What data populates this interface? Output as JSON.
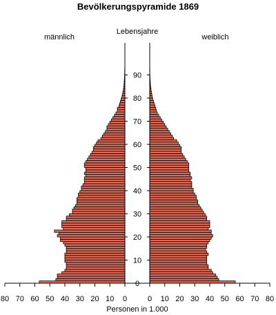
{
  "chart_data": {
    "type": "bar",
    "title": "Bevölkerungspyramide 1869",
    "left_label": "männlich",
    "right_label": "weiblich",
    "center_label": "Lebensjahre",
    "xlabel": "Personen in 1.000",
    "xlim": [
      0,
      80
    ],
    "x_ticks": [
      "0",
      "10",
      "20",
      "30",
      "40",
      "50",
      "60",
      "70",
      "80"
    ],
    "age_ticks": [
      "0",
      "10",
      "20",
      "30",
      "40",
      "50",
      "60",
      "70",
      "80",
      "90"
    ],
    "bar_color": "#e06a58",
    "ages": [
      0,
      1,
      2,
      3,
      4,
      5,
      6,
      7,
      8,
      9,
      10,
      11,
      12,
      13,
      14,
      15,
      16,
      17,
      18,
      19,
      20,
      21,
      22,
      23,
      24,
      25,
      26,
      27,
      28,
      29,
      30,
      31,
      32,
      33,
      34,
      35,
      36,
      37,
      38,
      39,
      40,
      41,
      42,
      43,
      44,
      45,
      46,
      47,
      48,
      49,
      50,
      51,
      52,
      53,
      54,
      55,
      56,
      57,
      58,
      59,
      60,
      61,
      62,
      63,
      64,
      65,
      66,
      67,
      68,
      69,
      70,
      71,
      72,
      73,
      74,
      75,
      76,
      77,
      78,
      79,
      80,
      81,
      82,
      83,
      84,
      85,
      86,
      87,
      88,
      89,
      90,
      91,
      92,
      93,
      94,
      95,
      96,
      97,
      98,
      99
    ],
    "series": [
      {
        "name": "männlich",
        "values": [
          57,
          46,
          45,
          45,
          42,
          40,
          39,
          39,
          39,
          40,
          40,
          40,
          40,
          39,
          39,
          39,
          40,
          41,
          43,
          43,
          45,
          44,
          47,
          41,
          42,
          42,
          42,
          39,
          39,
          37,
          35,
          35,
          34,
          33,
          32,
          32,
          32,
          31,
          31,
          30,
          29,
          29,
          28,
          27,
          27,
          27,
          26,
          27,
          26,
          26,
          27,
          27,
          26,
          25,
          24,
          23,
          22,
          21,
          21,
          20,
          19,
          18,
          16,
          15,
          14,
          13,
          12,
          12,
          11,
          10,
          9,
          8,
          7,
          6,
          5,
          5,
          4,
          3.5,
          3,
          2.5,
          2,
          1.6,
          1.3,
          1,
          0.8,
          0.6,
          0.5,
          0.4,
          0.3,
          0.2,
          0.15,
          0.1,
          0.1,
          0.05,
          0.05,
          0,
          0,
          0,
          0,
          0
        ]
      },
      {
        "name": "weiblich",
        "values": [
          57,
          46,
          45,
          44,
          42,
          41,
          39,
          39,
          38,
          38,
          38,
          38,
          39,
          38,
          37,
          38,
          38,
          39,
          40,
          41,
          42,
          41,
          41,
          39,
          40,
          40,
          40,
          38,
          38,
          37,
          36,
          35,
          34,
          33,
          32,
          32,
          31,
          31,
          30,
          29,
          29,
          28,
          28,
          28,
          27,
          28,
          27,
          27,
          26,
          26,
          26,
          26,
          25,
          24,
          23,
          22,
          21,
          21,
          21,
          20,
          19,
          18,
          16,
          15,
          14,
          13,
          12,
          11,
          10,
          9,
          8,
          7,
          6,
          5,
          4.5,
          4,
          3.5,
          3,
          2.5,
          2,
          1.7,
          1.4,
          1.1,
          0.9,
          0.7,
          0.5,
          0.4,
          0.3,
          0.2,
          0.15,
          0.1,
          0.08,
          0.05,
          0.03,
          0,
          0,
          0,
          0,
          0,
          0
        ]
      }
    ]
  }
}
